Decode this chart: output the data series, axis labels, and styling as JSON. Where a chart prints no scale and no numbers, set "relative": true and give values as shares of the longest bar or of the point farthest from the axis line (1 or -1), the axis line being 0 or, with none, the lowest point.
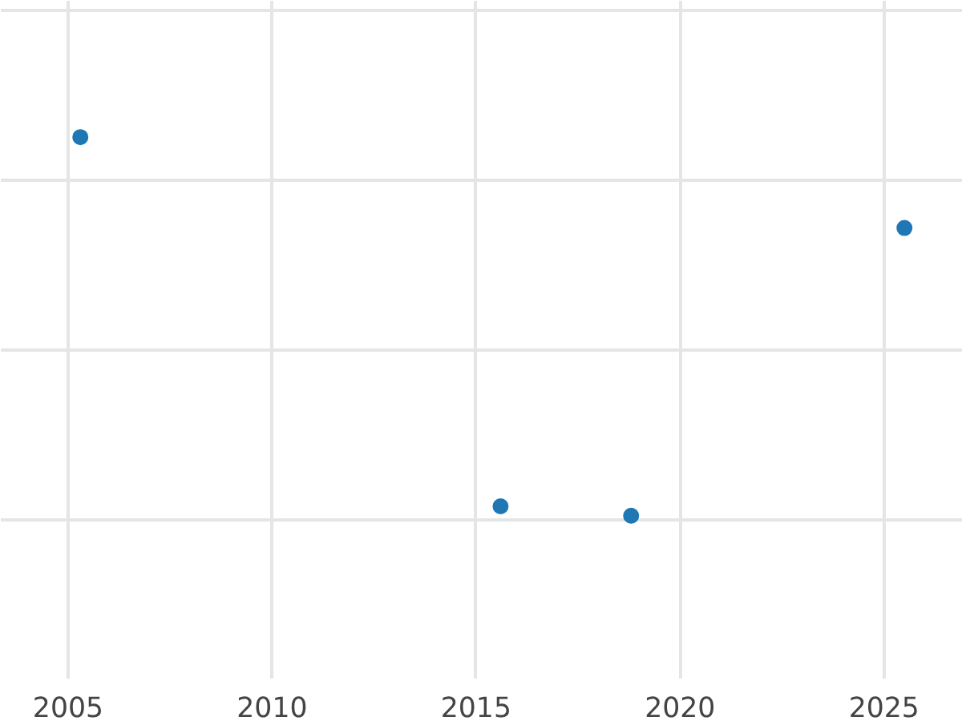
{
  "chart_data": {
    "type": "scatter",
    "relative": true,
    "x": [
      2005.3,
      2015.6,
      2018.8,
      2025.5
    ],
    "series": [
      {
        "color": "#1f77b4",
        "values": [
          1,
          0.025,
          0,
          0.76
        ]
      }
    ],
    "xlim": [
      2003.35,
      2026.93
    ],
    "xticks": [
      2005,
      2010,
      2015,
      2020,
      2025
    ],
    "grid": true,
    "marker": "circle"
  }
}
